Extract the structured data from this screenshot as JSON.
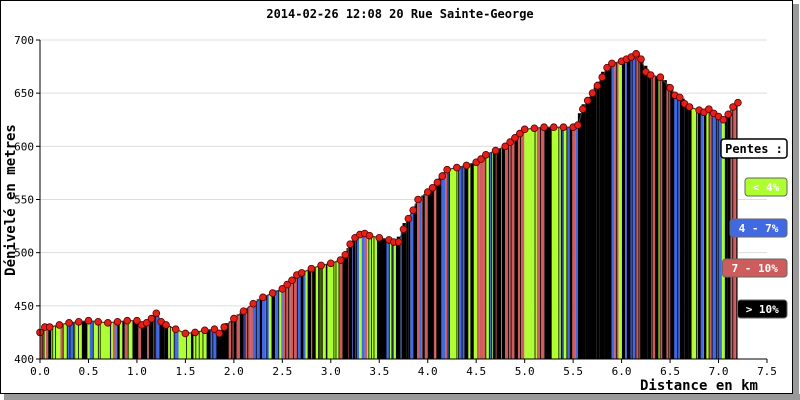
{
  "chart_data": {
    "type": "area",
    "title": "2014-02-26 12:08 20 Rue Sainte-George",
    "xlabel": "Distance en km",
    "ylabel": "Dénivelé en metres",
    "xlim": [
      0,
      7.5
    ],
    "ylim": [
      400,
      700
    ],
    "x_ticks": [
      "0.0",
      "0.5",
      "1.0",
      "1.5",
      "2.0",
      "2.5",
      "3.0",
      "3.5",
      "4.0",
      "4.5",
      "5.0",
      "5.5",
      "6.0",
      "6.5",
      "7.0",
      "7.5"
    ],
    "y_ticks": [
      "400",
      "450",
      "500",
      "550",
      "600",
      "650",
      "700"
    ],
    "grid": "horizontal",
    "legend": {
      "title": "Pentes :",
      "position": "right",
      "items": [
        {
          "label": "< 4%",
          "color": "#adff2f",
          "text_color": "#ffffff"
        },
        {
          "label": "4 - 7%",
          "color": "#4169e1",
          "text_color": "#ffffff"
        },
        {
          "label": "7 - 10%",
          "color": "#cd5c5c",
          "text_color": "#ffffff"
        },
        {
          "label": "> 10%",
          "color": "#000000",
          "text_color": "#ffffff"
        }
      ]
    },
    "series": [
      {
        "x": [
          0.0,
          0.05,
          0.1,
          0.2,
          0.3,
          0.4,
          0.5,
          0.6,
          0.7,
          0.8,
          0.9,
          1.0,
          1.05,
          1.1,
          1.15,
          1.2,
          1.25,
          1.3,
          1.4,
          1.5,
          1.6,
          1.7,
          1.8,
          1.85,
          1.9,
          2.0,
          2.1,
          2.2,
          2.3,
          2.4,
          2.5,
          2.55,
          2.6,
          2.65,
          2.7,
          2.8,
          2.9,
          3.0,
          3.1,
          3.15,
          3.2,
          3.25,
          3.3,
          3.35,
          3.4,
          3.5,
          3.6,
          3.65,
          3.7,
          3.75,
          3.8,
          3.85,
          3.9,
          4.0,
          4.05,
          4.1,
          4.15,
          4.2,
          4.3,
          4.4,
          4.5,
          4.55,
          4.6,
          4.7,
          4.8,
          4.85,
          4.9,
          4.95,
          5.0,
          5.1,
          5.2,
          5.3,
          5.4,
          5.5,
          5.55,
          5.6,
          5.65,
          5.7,
          5.75,
          5.8,
          5.85,
          5.9,
          6.0,
          6.05,
          6.1,
          6.15,
          6.2,
          6.25,
          6.3,
          6.4,
          6.5,
          6.55,
          6.6,
          6.65,
          6.7,
          6.8,
          6.85,
          6.9,
          6.95,
          7.0,
          7.05,
          7.1,
          7.15,
          7.2
        ],
        "y": [
          425,
          430,
          430,
          432,
          434,
          435,
          436,
          435,
          434,
          435,
          436,
          436,
          432,
          434,
          438,
          443,
          435,
          432,
          428,
          424,
          425,
          427,
          428,
          424,
          430,
          438,
          445,
          452,
          458,
          462,
          466,
          470,
          474,
          479,
          481,
          485,
          488,
          490,
          493,
          498,
          508,
          514,
          517,
          518,
          516,
          514,
          512,
          510,
          510,
          522,
          532,
          540,
          550,
          557,
          561,
          566,
          572,
          578,
          580,
          582,
          585,
          588,
          592,
          596,
          600,
          604,
          608,
          612,
          616,
          617,
          618,
          618,
          618,
          618,
          620,
          635,
          643,
          650,
          657,
          665,
          674,
          678,
          680,
          682,
          684,
          687,
          682,
          670,
          667,
          665,
          655,
          648,
          646,
          640,
          637,
          634,
          632,
          635,
          631,
          628,
          625,
          630,
          637,
          641
        ]
      }
    ]
  }
}
